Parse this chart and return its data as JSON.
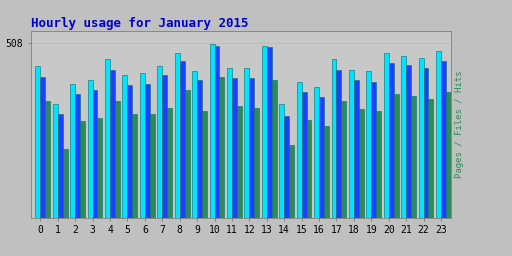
{
  "title": "Hourly usage for January 2015",
  "ylabel": "Pages / Files / Hits",
  "xlabel_ticks": [
    0,
    1,
    2,
    3,
    4,
    5,
    6,
    7,
    8,
    9,
    10,
    11,
    12,
    13,
    14,
    15,
    16,
    17,
    18,
    19,
    20,
    21,
    22,
    23
  ],
  "ymax": 508,
  "ytick_label": "508",
  "hits": [
    440,
    330,
    390,
    400,
    460,
    415,
    420,
    440,
    480,
    425,
    505,
    435,
    435,
    500,
    330,
    395,
    380,
    460,
    430,
    425,
    480,
    470,
    465,
    485
  ],
  "files": [
    410,
    300,
    360,
    370,
    430,
    385,
    390,
    415,
    455,
    400,
    500,
    405,
    405,
    495,
    295,
    365,
    350,
    430,
    400,
    395,
    450,
    445,
    435,
    455
  ],
  "pages": [
    340,
    200,
    280,
    290,
    340,
    300,
    300,
    320,
    370,
    310,
    410,
    325,
    320,
    400,
    210,
    285,
    265,
    340,
    315,
    310,
    360,
    355,
    345,
    365
  ],
  "color_hits": "#00e5ff",
  "color_files": "#1e3fff",
  "color_pages": "#2e8b57",
  "bg_color": "#c0c0c0",
  "plot_bg": "#c8c8c8",
  "title_color": "#0000cc",
  "ylabel_color": "#2e8b57",
  "bar_edge_color": "#007070",
  "bar_edge_lw": 0.4,
  "grid_color": "#aaaaaa",
  "spine_color": "#888888"
}
